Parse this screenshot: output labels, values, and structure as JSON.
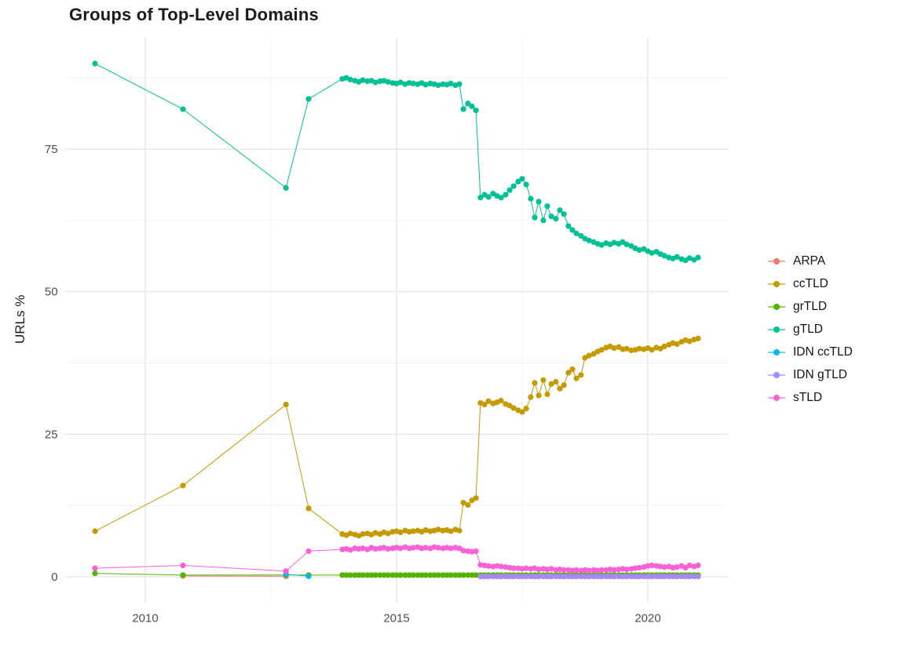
{
  "chart_data": {
    "type": "scatter",
    "title": "Groups of Top-Level Domains",
    "xlabel": "",
    "ylabel": "URLs %",
    "x_domain": [
      2008.4,
      2021.6
    ],
    "y_domain": [
      -4.5,
      94.5
    ],
    "x_ticks": [
      2010,
      2015,
      2020
    ],
    "y_ticks": [
      0,
      25,
      50,
      75
    ],
    "x_minor_ticks": [
      2012.5,
      2017.5
    ],
    "y_minor_ticks": [
      12.5,
      37.5,
      62.5,
      87.5
    ],
    "grid": true,
    "legend_position": "right",
    "colors": {
      "grid_major": "#e3e3e3",
      "grid_minor": "#f1f1f1",
      "tick_label": "#4d4d4d",
      "title": "#1b1b1b",
      "background": "#ffffff"
    },
    "x_dense": [
      2013.92,
      2014.0,
      2014.08,
      2014.17,
      2014.25,
      2014.33,
      2014.42,
      2014.5,
      2014.58,
      2014.67,
      2014.75,
      2014.83,
      2014.92,
      2015.0,
      2015.08,
      2015.17,
      2015.25,
      2015.33,
      2015.42,
      2015.5,
      2015.58,
      2015.67,
      2015.75,
      2015.83,
      2015.92,
      2016.0,
      2016.08,
      2016.17,
      2016.25,
      2016.33,
      2016.42,
      2016.5,
      2016.58,
      2016.67,
      2016.75,
      2016.83,
      2016.92,
      2017.0,
      2017.08,
      2017.17,
      2017.25,
      2017.33,
      2017.42,
      2017.5,
      2017.58,
      2017.67,
      2017.75,
      2017.83,
      2017.92,
      2018.0,
      2018.08,
      2018.17,
      2018.25,
      2018.33,
      2018.42,
      2018.5,
      2018.58,
      2018.67,
      2018.75,
      2018.83,
      2018.92,
      2019.0,
      2019.08,
      2019.17,
      2019.25,
      2019.33,
      2019.42,
      2019.5,
      2019.58,
      2019.67,
      2019.75,
      2019.83,
      2019.92,
      2020.0,
      2020.08,
      2020.17,
      2020.25,
      2020.33,
      2020.42,
      2020.5,
      2020.58,
      2020.67,
      2020.75,
      2020.83,
      2020.92,
      2021.0
    ],
    "series": [
      {
        "name": "ARPA",
        "color": "#F8766D",
        "points_sparse": [
          [
            2010.75,
            0.15
          ],
          [
            2012.8,
            0.1
          ]
        ]
      },
      {
        "name": "ccTLD",
        "color": "#C49A00",
        "points_sparse": [
          [
            2009.0,
            8.0
          ],
          [
            2010.75,
            16.0
          ],
          [
            2012.8,
            30.2
          ],
          [
            2013.25,
            12.0
          ]
        ],
        "y_dense": [
          7.5,
          7.3,
          7.6,
          7.4,
          7.2,
          7.5,
          7.6,
          7.4,
          7.7,
          7.5,
          7.8,
          7.6,
          7.9,
          8.0,
          7.8,
          8.1,
          7.9,
          8.0,
          8.1,
          7.9,
          8.2,
          8.0,
          8.1,
          8.3,
          8.1,
          8.2,
          8.0,
          8.3,
          8.1,
          13.0,
          12.6,
          13.4,
          13.8,
          30.5,
          30.2,
          30.8,
          30.4,
          30.6,
          30.9,
          30.3,
          30.0,
          29.6,
          29.2,
          28.9,
          29.5,
          31.5,
          34.0,
          31.8,
          34.5,
          32.0,
          33.8,
          34.2,
          33.0,
          33.6,
          35.8,
          36.4,
          34.8,
          35.4,
          38.4,
          38.8,
          39.1,
          39.5,
          39.8,
          40.2,
          40.4,
          40.1,
          40.3,
          39.9,
          40.0,
          39.7,
          39.8,
          40.0,
          39.9,
          40.1,
          39.8,
          40.2,
          40.0,
          40.4,
          40.7,
          41.0,
          40.8,
          41.2,
          41.5,
          41.3,
          41.6,
          41.8
        ]
      },
      {
        "name": "grTLD",
        "color": "#53B400",
        "points_sparse": [
          [
            2009.0,
            0.6
          ],
          [
            2010.75,
            0.3
          ],
          [
            2012.8,
            0.3
          ],
          [
            2013.25,
            0.3
          ]
        ],
        "y_dense": [
          0.3,
          0.3,
          0.3,
          0.3,
          0.3,
          0.3,
          0.3,
          0.3,
          0.3,
          0.3,
          0.3,
          0.3,
          0.3,
          0.3,
          0.3,
          0.3,
          0.3,
          0.3,
          0.3,
          0.3,
          0.3,
          0.3,
          0.3,
          0.3,
          0.3,
          0.3,
          0.3,
          0.3,
          0.3,
          0.3,
          0.3,
          0.3,
          0.3,
          0.3,
          0.3,
          0.3,
          0.3,
          0.3,
          0.3,
          0.3,
          0.3,
          0.3,
          0.3,
          0.3,
          0.3,
          0.3,
          0.3,
          0.3,
          0.3,
          0.3,
          0.3,
          0.3,
          0.3,
          0.3,
          0.3,
          0.3,
          0.3,
          0.3,
          0.3,
          0.3,
          0.3,
          0.3,
          0.3,
          0.3,
          0.3,
          0.3,
          0.3,
          0.3,
          0.3,
          0.3,
          0.3,
          0.3,
          0.3,
          0.3,
          0.3,
          0.3,
          0.3,
          0.3,
          0.3,
          0.3,
          0.3,
          0.3,
          0.3,
          0.3,
          0.3,
          0.3
        ]
      },
      {
        "name": "gTLD",
        "color": "#00C094",
        "points_sparse": [
          [
            2009.0,
            90.0
          ],
          [
            2010.75,
            82.0
          ],
          [
            2012.8,
            68.2
          ],
          [
            2013.25,
            83.8
          ]
        ],
        "y_dense": [
          87.3,
          87.5,
          87.2,
          87.0,
          86.8,
          87.1,
          86.9,
          87.0,
          86.7,
          86.9,
          87.0,
          86.8,
          86.6,
          86.5,
          86.7,
          86.4,
          86.6,
          86.5,
          86.4,
          86.6,
          86.3,
          86.5,
          86.4,
          86.2,
          86.4,
          86.3,
          86.5,
          86.2,
          86.4,
          82.0,
          83.0,
          82.5,
          81.8,
          66.5,
          67.0,
          66.6,
          67.2,
          66.8,
          66.5,
          67.0,
          67.8,
          68.5,
          69.3,
          69.8,
          68.8,
          66.3,
          63.0,
          65.8,
          62.5,
          65.0,
          63.2,
          62.8,
          64.3,
          63.6,
          61.5,
          60.8,
          60.2,
          59.8,
          59.3,
          59.0,
          58.7,
          58.4,
          58.2,
          58.5,
          58.3,
          58.6,
          58.4,
          58.7,
          58.3,
          58.0,
          57.6,
          57.3,
          57.5,
          57.1,
          56.8,
          57.0,
          56.6,
          56.3,
          56.0,
          55.8,
          56.1,
          55.7,
          55.5,
          55.9,
          55.6,
          56.0
        ]
      },
      {
        "name": "IDN ccTLD",
        "color": "#00B6EB",
        "points_sparse": [
          [
            2012.8,
            0.45
          ],
          [
            2013.25,
            0.1
          ]
        ]
      },
      {
        "name": "IDN gTLD",
        "color": "#A58AFF",
        "y_dense": [
          null,
          null,
          null,
          null,
          null,
          null,
          null,
          null,
          null,
          null,
          null,
          null,
          null,
          null,
          null,
          null,
          null,
          null,
          null,
          null,
          null,
          null,
          null,
          null,
          null,
          null,
          null,
          null,
          null,
          null,
          null,
          null,
          null,
          0.05,
          0.05,
          0.05,
          0.05,
          0.05,
          0.05,
          0.05,
          0.05,
          0.05,
          0.05,
          0.05,
          0.05,
          0.05,
          0.05,
          0.05,
          0.05,
          0.05,
          0.05,
          0.05,
          0.05,
          0.05,
          0.05,
          0.05,
          0.05,
          0.05,
          0.05,
          0.05,
          0.05,
          0.05,
          0.05,
          0.05,
          0.05,
          0.05,
          0.05,
          0.05,
          0.05,
          0.05,
          0.05,
          0.05,
          0.05,
          0.05,
          0.05,
          0.05,
          0.05,
          0.05,
          0.05,
          0.05,
          0.05,
          0.05,
          0.05,
          0.05,
          0.05,
          0.05
        ]
      },
      {
        "name": "sTLD",
        "color": "#FB61D7",
        "points_sparse": [
          [
            2009.0,
            1.5
          ],
          [
            2010.75,
            2.0
          ],
          [
            2012.8,
            1.0
          ],
          [
            2013.25,
            4.5
          ]
        ],
        "y_dense": [
          4.8,
          4.9,
          4.7,
          5.0,
          4.9,
          5.0,
          4.8,
          5.1,
          4.9,
          5.0,
          5.1,
          4.9,
          5.0,
          5.1,
          5.0,
          5.2,
          5.0,
          5.1,
          5.2,
          5.0,
          5.1,
          5.0,
          5.2,
          5.1,
          5.0,
          5.1,
          5.0,
          5.1,
          5.0,
          4.6,
          4.5,
          4.4,
          4.5,
          2.1,
          2.0,
          1.9,
          1.8,
          1.9,
          1.8,
          1.7,
          1.6,
          1.5,
          1.5,
          1.4,
          1.5,
          1.4,
          1.5,
          1.3,
          1.4,
          1.3,
          1.4,
          1.2,
          1.3,
          1.2,
          1.2,
          1.1,
          1.2,
          1.1,
          1.2,
          1.1,
          1.2,
          1.1,
          1.2,
          1.2,
          1.3,
          1.2,
          1.3,
          1.4,
          1.3,
          1.4,
          1.5,
          1.6,
          1.7,
          1.9,
          2.0,
          1.9,
          1.8,
          1.7,
          1.8,
          1.6,
          1.7,
          1.9,
          1.6,
          2.0,
          1.8,
          2.0
        ]
      }
    ]
  }
}
